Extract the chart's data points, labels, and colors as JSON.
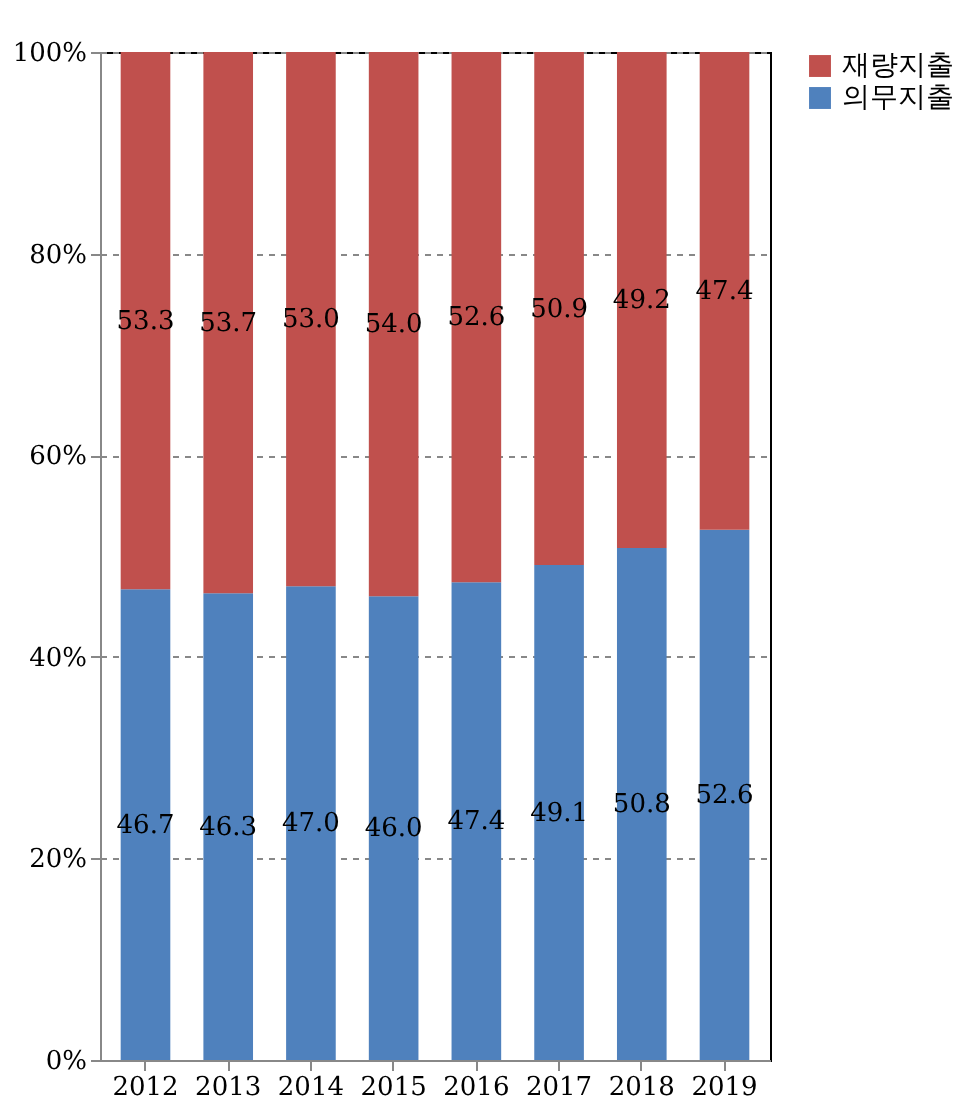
{
  "chart_data": {
    "type": "bar",
    "stacked": true,
    "categories": [
      "2012",
      "2013",
      "2014",
      "2015",
      "2016",
      "2017",
      "2018",
      "2019"
    ],
    "series": [
      {
        "name": "의무지출",
        "color": "#4f81bd",
        "values": [
          46.7,
          46.3,
          47.0,
          46.0,
          47.4,
          49.1,
          50.8,
          52.6
        ],
        "value_labels": [
          "46.7",
          "46.3",
          "47.0",
          "46.0",
          "47.4",
          "49.1",
          "50.8",
          "52.6"
        ]
      },
      {
        "name": "재량지출",
        "color": "#c0504d",
        "values": [
          53.3,
          53.7,
          53.0,
          54.0,
          52.6,
          50.9,
          49.2,
          47.4
        ],
        "value_labels": [
          "53.3",
          "53.7",
          "53.0",
          "54.0",
          "52.6",
          "50.9",
          "49.2",
          "47.4"
        ]
      }
    ],
    "ylim": [
      0,
      100
    ],
    "yticks": [
      {
        "value": 0,
        "label": "0%"
      },
      {
        "value": 20,
        "label": "20%"
      },
      {
        "value": 40,
        "label": "40%"
      },
      {
        "value": 60,
        "label": "60%"
      },
      {
        "value": 80,
        "label": "80%"
      },
      {
        "value": 100,
        "label": "100%"
      }
    ],
    "grid": "y",
    "legend": "right"
  }
}
